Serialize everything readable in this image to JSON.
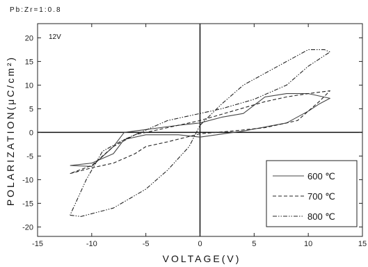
{
  "chart_data": {
    "type": "line",
    "subtitle": "Pb:Zr=1:0.8",
    "annotation": "12V",
    "xlabel": "VOLTAGE(V)",
    "ylabel": "POLARIZATION(μC/cm²)",
    "xlim": [
      -15,
      15
    ],
    "ylim": [
      -22,
      23
    ],
    "xticks": [
      -15,
      -10,
      -5,
      0,
      5,
      10,
      15
    ],
    "yticks": [
      -20,
      -15,
      -10,
      -5,
      0,
      5,
      10,
      15,
      20
    ],
    "grid": false,
    "legend_position": "bottom-right",
    "series": [
      {
        "name": "600 ℃",
        "style": "solid",
        "color": "#444444",
        "points": [
          [
            -12,
            -7
          ],
          [
            -10,
            -6.5
          ],
          [
            -8,
            -4.5
          ],
          [
            -7,
            -1.5
          ],
          [
            -5,
            -0.5
          ],
          [
            -2,
            -0.5
          ],
          [
            0,
            -1
          ],
          [
            4,
            0.3
          ],
          [
            8,
            2
          ],
          [
            10,
            4.5
          ],
          [
            11,
            6
          ],
          [
            12,
            7.2
          ],
          [
            10,
            8.2
          ],
          [
            8,
            8.2
          ],
          [
            6,
            7.5
          ],
          [
            4,
            4
          ],
          [
            2,
            3.2
          ],
          [
            0,
            2
          ],
          [
            -2,
            1.5
          ],
          [
            -5,
            0.6
          ],
          [
            -7,
            0
          ],
          [
            -8,
            -3
          ],
          [
            -10,
            -7.2
          ],
          [
            -12,
            -7
          ]
        ]
      },
      {
        "name": "700 ℃",
        "style": "dashed",
        "color": "#222222",
        "points": [
          [
            -12,
            -8.7
          ],
          [
            -10,
            -7.5
          ],
          [
            -8,
            -6.5
          ],
          [
            -6,
            -4.5
          ],
          [
            -5,
            -3
          ],
          [
            -3,
            -2
          ],
          [
            0,
            -0.3
          ],
          [
            3,
            0.3
          ],
          [
            6,
            1
          ],
          [
            9,
            2.5
          ],
          [
            11,
            6.5
          ],
          [
            12,
            8.8
          ],
          [
            10,
            8.2
          ],
          [
            8,
            7.5
          ],
          [
            6,
            6.5
          ],
          [
            3,
            4.5
          ],
          [
            0,
            2.5
          ],
          [
            -3,
            1
          ],
          [
            -6,
            -0.5
          ],
          [
            -8,
            -3
          ],
          [
            -10,
            -7
          ],
          [
            -12,
            -8.7
          ]
        ]
      },
      {
        "name": "800 ℃",
        "style": "dashdotdot",
        "color": "#222222",
        "points": [
          [
            -12,
            -17.5
          ],
          [
            -11,
            -17.8
          ],
          [
            -8,
            -16
          ],
          [
            -5,
            -12
          ],
          [
            -3,
            -8
          ],
          [
            -1,
            -3
          ],
          [
            0,
            1.5
          ],
          [
            2,
            6
          ],
          [
            4,
            10
          ],
          [
            6,
            12.5
          ],
          [
            8,
            15
          ],
          [
            10,
            17.5
          ],
          [
            11.5,
            17.5
          ],
          [
            12,
            17
          ],
          [
            10,
            14
          ],
          [
            8,
            10
          ],
          [
            5,
            7
          ],
          [
            2,
            5
          ],
          [
            0,
            4
          ],
          [
            -3,
            2.5
          ],
          [
            -5,
            0.5
          ],
          [
            -7,
            -1.5
          ],
          [
            -9,
            -4
          ],
          [
            -10.5,
            -10
          ],
          [
            -11.5,
            -15
          ],
          [
            -12,
            -17.5
          ]
        ]
      }
    ]
  }
}
